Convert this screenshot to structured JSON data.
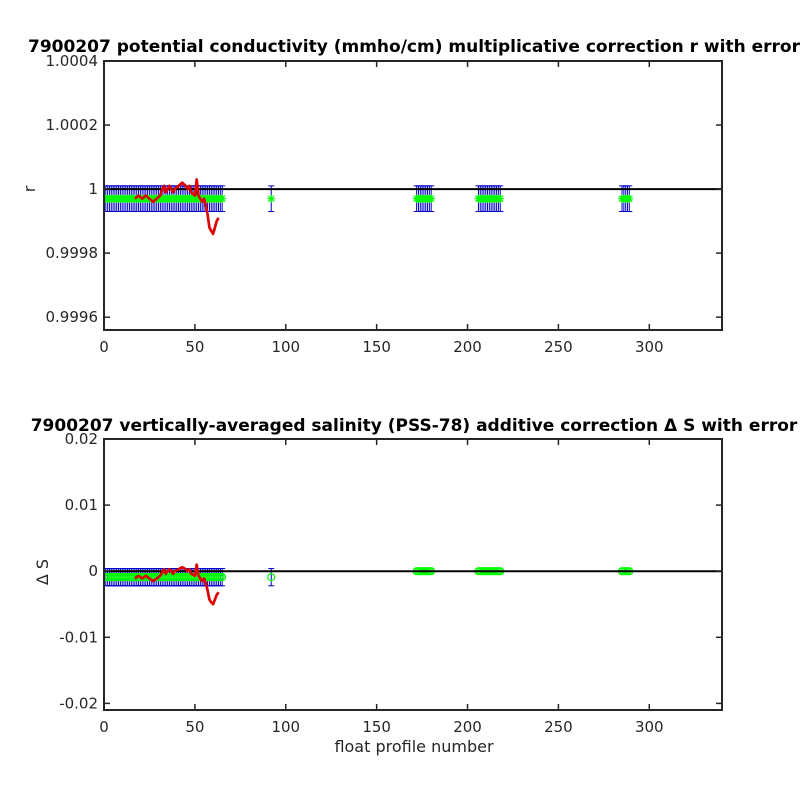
{
  "chart_data": [
    {
      "type": "line",
      "title": "7900207 potential conductivity (mmho/cm) multiplicative correction r with error",
      "xlabel": "",
      "ylabel": "r",
      "xlim": [
        0,
        340
      ],
      "ylim": [
        0.99956,
        1.0004
      ],
      "xticks": [
        0,
        50,
        100,
        150,
        200,
        250,
        300
      ],
      "xtick_labels": [
        "0",
        "50",
        "100",
        "150",
        "200",
        "250",
        "300"
      ],
      "yticks": [
        0.9996,
        0.9998,
        1.0,
        1.0002,
        1.0004
      ],
      "ytick_labels": [
        "0.9996",
        "0.9998",
        "1",
        "1.0002",
        "1.0004"
      ],
      "reference_line": 1.0,
      "series": [
        {
          "marker": "asterisk",
          "color": "#00ff00",
          "x": [
            1,
            2,
            3,
            4,
            5,
            6,
            7,
            8,
            9,
            10,
            11,
            12,
            13,
            14,
            15,
            16,
            17,
            18,
            19,
            20,
            21,
            22,
            23,
            24,
            25,
            26,
            27,
            28,
            29,
            30,
            31,
            32,
            33,
            34,
            35,
            36,
            37,
            38,
            39,
            40,
            41,
            42,
            43,
            44,
            45,
            46,
            47,
            48,
            49,
            50,
            51,
            52,
            53,
            54,
            55,
            56,
            57,
            58,
            59,
            60,
            61,
            62,
            63,
            64,
            65,
            92,
            172,
            173,
            174,
            175,
            176,
            177,
            178,
            179,
            180,
            206,
            207,
            208,
            209,
            210,
            211,
            212,
            213,
            214,
            215,
            216,
            217,
            218,
            285,
            286,
            287,
            288,
            289
          ],
          "y": [
            0.99997,
            0.99997,
            0.99997,
            0.99997,
            0.99997,
            0.99997,
            0.99997,
            0.99997,
            0.99997,
            0.99997,
            0.99997,
            0.99997,
            0.99997,
            0.99997,
            0.99997,
            0.99997,
            0.99997,
            0.99997,
            0.99997,
            0.99997,
            0.99997,
            0.99997,
            0.99997,
            0.99997,
            0.99997,
            0.99997,
            0.99997,
            0.99997,
            0.99997,
            0.99997,
            0.99997,
            0.99997,
            0.99997,
            0.99997,
            0.99997,
            0.99997,
            0.99997,
            0.99997,
            0.99997,
            0.99997,
            0.99997,
            0.99997,
            0.99997,
            0.99997,
            0.99997,
            0.99997,
            0.99997,
            0.99997,
            0.99997,
            0.99997,
            0.99997,
            0.99997,
            0.99997,
            0.99997,
            0.99997,
            0.99997,
            0.99997,
            0.99997,
            0.99997,
            0.99997,
            0.99997,
            0.99997,
            0.99997,
            0.99997,
            0.99997,
            0.99997,
            0.99997,
            0.99997,
            0.99997,
            0.99997,
            0.99997,
            0.99997,
            0.99997,
            0.99997,
            0.99997,
            0.99997,
            0.99997,
            0.99997,
            0.99997,
            0.99997,
            0.99997,
            0.99997,
            0.99997,
            0.99997,
            0.99997,
            0.99997,
            0.99997,
            0.99997,
            0.99997,
            0.99997,
            0.99997,
            0.99997,
            0.99997
          ],
          "error": 4e-05,
          "error_color": "#0000cc"
        },
        {
          "marker": "none",
          "color": "#e00000",
          "x": [
            17,
            19,
            21,
            23,
            25,
            27,
            29,
            31,
            32,
            33,
            34,
            35,
            36,
            37,
            38,
            39,
            41,
            43,
            45,
            46,
            47,
            48,
            50,
            51,
            52,
            53,
            54,
            55,
            56,
            57,
            58,
            59,
            60,
            61,
            62,
            63
          ],
          "y": [
            0.99997,
            0.99998,
            0.99997,
            0.99998,
            0.99997,
            0.99996,
            0.99997,
            0.99998,
            1.0,
            1.00001,
            0.99999,
            1.0,
            1.00001,
            1.0,
            0.99999,
            1.0,
            1.00001,
            1.00002,
            1.00001,
            1.0,
            1.00001,
            0.99999,
            0.99998,
            1.00003,
            0.99998,
            0.99997,
            0.99996,
            0.99997,
            0.99995,
            0.99992,
            0.99988,
            0.99987,
            0.99986,
            0.99988,
            0.9999,
            0.99991
          ]
        }
      ]
    },
    {
      "type": "line",
      "title": "7900207 vertically-averaged salinity (PSS-78) additive correction Δ S with error",
      "xlabel": "float profile number",
      "ylabel": "Δ S",
      "xlim": [
        0,
        340
      ],
      "ylim": [
        -0.021,
        0.02
      ],
      "xticks": [
        0,
        50,
        100,
        150,
        200,
        250,
        300
      ],
      "xtick_labels": [
        "0",
        "50",
        "100",
        "150",
        "200",
        "250",
        "300"
      ],
      "yticks": [
        -0.02,
        -0.01,
        0,
        0.01,
        0.02
      ],
      "ytick_labels": [
        "-0.02",
        "-0.01",
        "0",
        "0.01",
        "0.02"
      ],
      "reference_line": 0,
      "series": [
        {
          "marker": "circle",
          "color": "#00ff00",
          "x": [
            1,
            2,
            3,
            4,
            5,
            6,
            7,
            8,
            9,
            10,
            11,
            12,
            13,
            14,
            15,
            16,
            17,
            18,
            19,
            20,
            21,
            22,
            23,
            24,
            25,
            26,
            27,
            28,
            29,
            30,
            31,
            32,
            33,
            34,
            35,
            36,
            37,
            38,
            39,
            40,
            41,
            42,
            43,
            44,
            45,
            46,
            47,
            48,
            49,
            50,
            51,
            52,
            53,
            54,
            55,
            56,
            57,
            58,
            59,
            60,
            61,
            62,
            63,
            64,
            65,
            92
          ],
          "y": [
            -0.0009,
            -0.0009,
            -0.0009,
            -0.0009,
            -0.0009,
            -0.0009,
            -0.0009,
            -0.0009,
            -0.0009,
            -0.0009,
            -0.0009,
            -0.0009,
            -0.0009,
            -0.0009,
            -0.0009,
            -0.0009,
            -0.0009,
            -0.0009,
            -0.0009,
            -0.0009,
            -0.0009,
            -0.0009,
            -0.0009,
            -0.0009,
            -0.0009,
            -0.0009,
            -0.0009,
            -0.0009,
            -0.0009,
            -0.0009,
            -0.0009,
            -0.0009,
            -0.0009,
            -0.0009,
            -0.0009,
            -0.0009,
            -0.0009,
            -0.0009,
            -0.0009,
            -0.0009,
            -0.0009,
            -0.0009,
            -0.0009,
            -0.0009,
            -0.0009,
            -0.0009,
            -0.0009,
            -0.0009,
            -0.0009,
            -0.0009,
            -0.0009,
            -0.0009,
            -0.0009,
            -0.0009,
            -0.0009,
            -0.0009,
            -0.0009,
            -0.0009,
            -0.0009,
            -0.0009,
            -0.0009,
            -0.0009,
            -0.0009,
            -0.0009,
            -0.0009,
            -0.0009
          ],
          "error": 0.0013,
          "error_color": "#0000cc"
        },
        {
          "marker": "circle",
          "color": "#00ff00",
          "x": [
            172,
            173,
            174,
            175,
            176,
            177,
            178,
            179,
            180,
            206,
            207,
            208,
            209,
            210,
            211,
            212,
            213,
            214,
            215,
            216,
            217,
            218,
            285,
            286,
            287,
            288,
            289
          ],
          "y": [
            0,
            0,
            0,
            0,
            0,
            0,
            0,
            0,
            0,
            0,
            0,
            0,
            0,
            0,
            0,
            0,
            0,
            0,
            0,
            0,
            0,
            0,
            0,
            0,
            0,
            0,
            0
          ],
          "error": 0,
          "error_color": "#0000cc"
        },
        {
          "marker": "none",
          "color": "#e00000",
          "x": [
            17,
            19,
            21,
            23,
            25,
            27,
            29,
            31,
            32,
            33,
            34,
            35,
            36,
            37,
            38,
            39,
            41,
            43,
            45,
            46,
            47,
            48,
            50,
            51,
            52,
            53,
            54,
            55,
            56,
            57,
            58,
            59,
            60,
            61,
            62,
            63
          ],
          "y": [
            -0.0011,
            -0.0007,
            -0.0011,
            -0.0007,
            -0.0011,
            -0.0015,
            -0.0011,
            -0.0007,
            -0.0001,
            0.0003,
            -0.0004,
            0,
            0.0003,
            0,
            -0.0004,
            0,
            0.0003,
            0.0006,
            0.0003,
            0,
            0.0003,
            -0.0004,
            -0.0007,
            0.001,
            -0.0007,
            -0.0011,
            -0.0015,
            -0.0011,
            -0.0018,
            -0.0029,
            -0.0043,
            -0.0047,
            -0.005,
            -0.0043,
            -0.0036,
            -0.0032
          ]
        }
      ]
    }
  ]
}
